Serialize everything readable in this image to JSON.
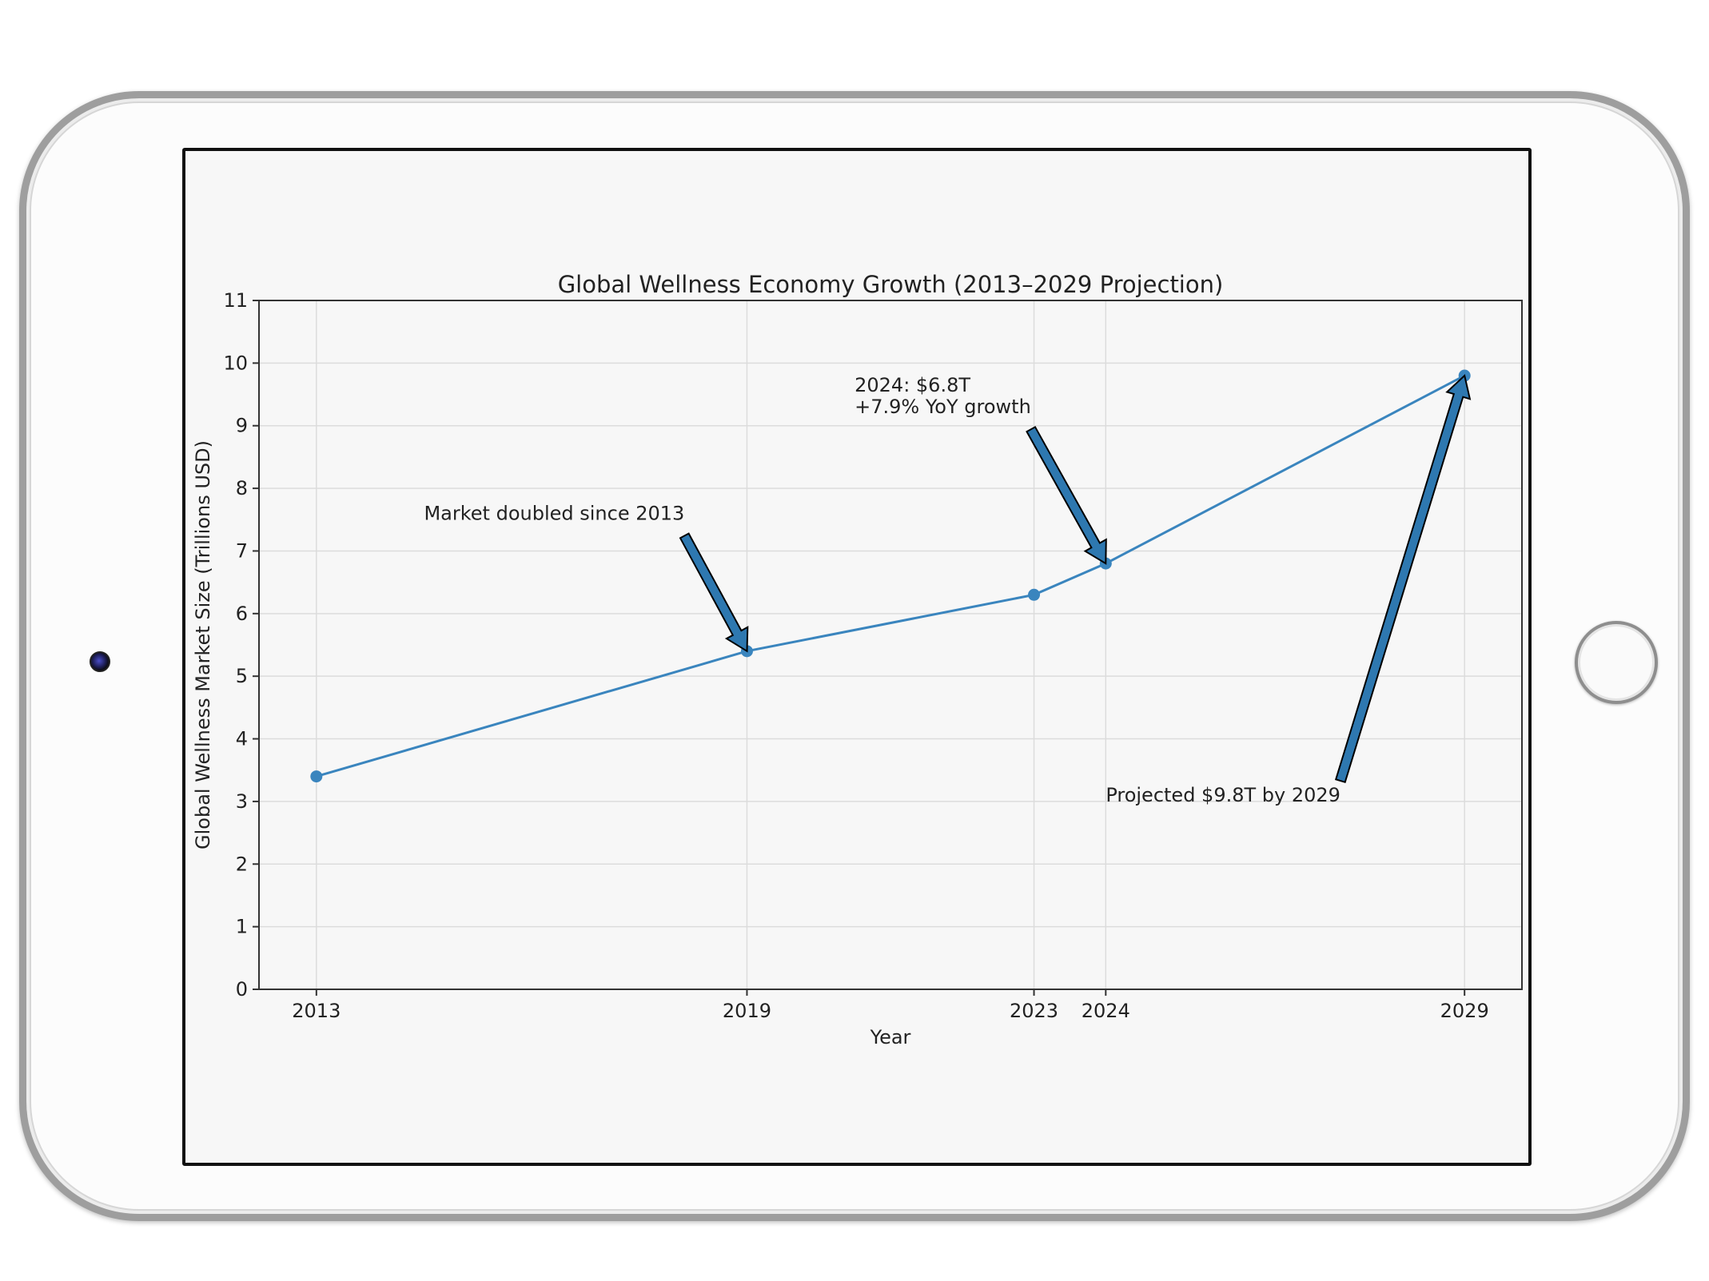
{
  "chart_data": {
    "type": "line",
    "title": "Global Wellness Economy Growth (2013–2029 Projection)",
    "xlabel": "Year",
    "ylabel": "Global Wellness Market Size (Trillions USD)",
    "x": [
      2013,
      2019,
      2023,
      2024,
      2029
    ],
    "x_tick_labels": [
      "2013",
      "2019",
      "2023",
      "2024",
      "2029"
    ],
    "series": [
      {
        "values": [
          3.4,
          5.4,
          6.3,
          6.8,
          9.8
        ],
        "color": "#3a85be",
        "marker": "circle"
      }
    ],
    "xlim": [
      2012.2,
      2029.8
    ],
    "ylim": [
      0,
      11
    ],
    "y_ticks": [
      0,
      1,
      2,
      3,
      4,
      5,
      6,
      7,
      8,
      9,
      10,
      11
    ],
    "grid": true,
    "annotations": [
      {
        "lines": [
          "Market doubled since 2013"
        ],
        "point": [
          2019,
          5.4
        ],
        "text_pos": [
          2014.5,
          7.6
        ]
      },
      {
        "lines": [
          "2024: $6.8T",
          "+7.9% YoY growth"
        ],
        "point": [
          2024,
          6.8
        ],
        "text_pos": [
          2020.5,
          9.3
        ]
      },
      {
        "lines": [
          "Projected $9.8T by 2029"
        ],
        "point": [
          2029,
          9.8
        ],
        "text_pos": [
          2024,
          3.1
        ]
      }
    ],
    "arrow_color": "#2e78b0"
  }
}
